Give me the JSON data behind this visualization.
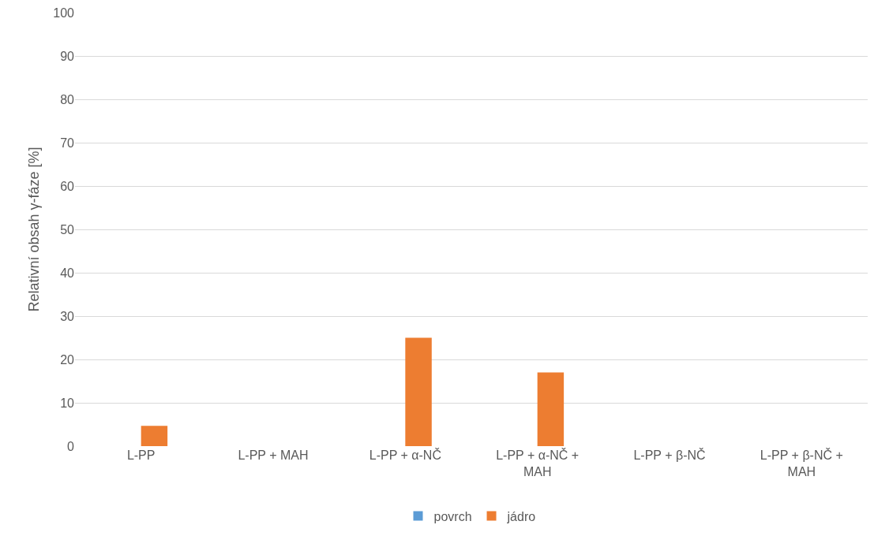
{
  "chart_data": {
    "type": "bar",
    "ylabel": "Relativní obsah γ-fáze [%]",
    "categories": [
      "L-PP",
      "L-PP + MAH",
      "L-PP + α-NČ",
      "L-PP + α-NČ + MAH",
      "L-PP + β-NČ",
      "L-PP + β-NČ + MAH"
    ],
    "series": [
      {
        "name": "povrch",
        "color": "#5b9bd5",
        "values": [
          0,
          0,
          0,
          0,
          0,
          0
        ]
      },
      {
        "name": "jádro",
        "color": "#ed7d31",
        "values": [
          4.7,
          0,
          25,
          17,
          0,
          0
        ]
      }
    ],
    "ylim": [
      0,
      100
    ],
    "yticks": [
      0,
      10,
      20,
      30,
      40,
      50,
      60,
      70,
      80,
      90,
      100
    ],
    "grid": "y",
    "legend": "bottom"
  }
}
